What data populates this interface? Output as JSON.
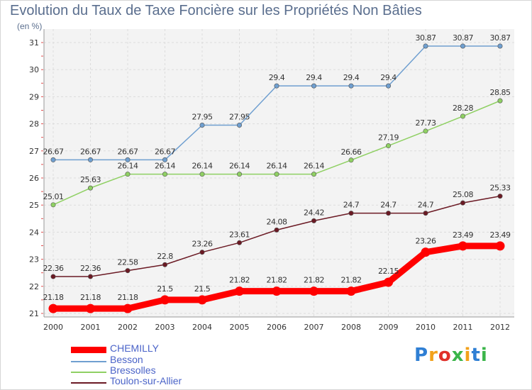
{
  "title": "Evolution du Taux de Taxe Foncière sur les Propriétés Non Bâties",
  "unit": "(en %)",
  "chart_data": {
    "type": "line",
    "x": [
      "2000",
      "2001",
      "2002",
      "2003",
      "2004",
      "2005",
      "2006",
      "2007",
      "2008",
      "2009",
      "2010",
      "2011",
      "2012"
    ],
    "ylim": [
      21,
      31
    ],
    "yticks": [
      21,
      22,
      23,
      24,
      25,
      26,
      27,
      28,
      29,
      30,
      31
    ],
    "grid": true,
    "legend_position": "bottom-left",
    "series": [
      {
        "name": "Toulon-sur-Allier",
        "color": "#6b1a24",
        "values": [
          22.36,
          22.36,
          22.58,
          22.8,
          23.26,
          23.61,
          24.08,
          24.42,
          24.7,
          24.7,
          24.7,
          25.08,
          25.33
        ],
        "labels": [
          "22.36",
          "22.36",
          "22.58",
          "22.8",
          "23.26",
          "23.61",
          "24.08",
          "24.42",
          "24.7",
          "24.7",
          "24.7",
          "25.08",
          "25.33"
        ]
      },
      {
        "name": "Bressolles",
        "color": "#8fd063",
        "values": [
          25.01,
          25.63,
          26.14,
          26.14,
          26.14,
          26.14,
          26.14,
          26.14,
          26.66,
          27.19,
          27.73,
          28.28,
          28.85
        ],
        "labels": [
          "25.01",
          "25.63",
          "26.14",
          "26.14",
          "26.14",
          "26.14",
          "26.14",
          "26.14",
          "26.66",
          "27.19",
          "27.73",
          "28.28",
          "28.85"
        ]
      },
      {
        "name": "Besson",
        "color": "#6f9fd0",
        "values": [
          26.67,
          26.67,
          26.67,
          26.67,
          27.95,
          27.95,
          29.4,
          29.4,
          29.4,
          29.4,
          30.87,
          30.87,
          30.87
        ],
        "labels": [
          "26.67",
          "26.67",
          "26.67",
          "26.67",
          "27.95",
          "27.95",
          "29.4",
          "29.4",
          "29.4",
          "29.4",
          "30.87",
          "30.87",
          "30.87"
        ]
      },
      {
        "name": "CHEMILLY",
        "color": "#ff0000",
        "values": [
          21.18,
          21.18,
          21.18,
          21.5,
          21.5,
          21.82,
          21.82,
          21.82,
          21.82,
          22.15,
          23.26,
          23.49,
          23.49
        ],
        "labels": [
          "21.18",
          "21.18",
          "21.18",
          "21.5",
          "21.5",
          "21.82",
          "21.82",
          "21.82",
          "21.82",
          "22.15",
          "23.26",
          "23.49",
          "23.49"
        ]
      }
    ]
  },
  "legend": [
    {
      "name": "CHEMILLY",
      "color": "#ff0000"
    },
    {
      "name": "Besson",
      "color": "#6f9fd0"
    },
    {
      "name": "Bressolles",
      "color": "#8fd063"
    },
    {
      "name": "Toulon-sur-Allier",
      "color": "#6b1a24"
    }
  ],
  "logo": {
    "text": [
      "P",
      "r",
      "o",
      "x",
      "i",
      "t",
      "i"
    ],
    "colors": [
      "#2f7fd4",
      "#f2a11b",
      "#e0302a",
      "#3bb54a",
      "#f2a11b",
      "#2f7fd4",
      "#3bb54a"
    ]
  }
}
